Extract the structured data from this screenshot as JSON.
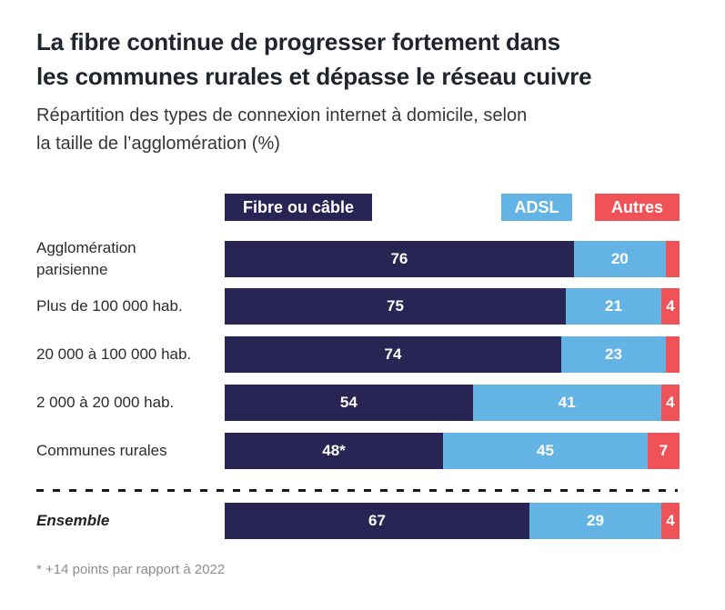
{
  "header": {
    "title_line1": "La fibre continue de progresser fortement dans",
    "title_line2": "les communes rurales et dépasse le réseau cuivre",
    "subtitle_line1": "Répartition des types de connexion internet à domicile, selon",
    "subtitle_line2": "la taille de l’agglomération (%)"
  },
  "legend": [
    {
      "label": "Fibre ou câble",
      "color": "#282453"
    },
    {
      "label": "ADSL",
      "color": "#63b4e4"
    },
    {
      "label": "Autres",
      "color": "#ef5257"
    }
  ],
  "chart_data": {
    "type": "bar",
    "orientation": "horizontal",
    "stacked": true,
    "unit": "%",
    "xlim": [
      0,
      100
    ],
    "grid": false,
    "legend_position": "top",
    "categories": [
      "Agglomération parisienne",
      "Plus de 100 000 hab.",
      "20 000 à 100 000 hab.",
      "2 000 à 20 000 hab.",
      "Communes rurales",
      "Ensemble"
    ],
    "category_display": [
      "Agglomération\nparisienne",
      "Plus de 100 000 hab.",
      "20 000 à 100 000 hab.",
      "2 000 à 20 000 hab.",
      "Communes rurales",
      "Ensemble"
    ],
    "series": [
      {
        "name": "Fibre ou câble",
        "color": "#282453",
        "values": [
          76,
          75,
          74,
          54,
          48,
          67
        ]
      },
      {
        "name": "ADSL",
        "color": "#63b4e4",
        "values": [
          20,
          21,
          23,
          41,
          45,
          29
        ]
      },
      {
        "name": "Autres",
        "color": "#ef5257",
        "values": [
          3,
          4,
          3,
          4,
          7,
          4
        ]
      }
    ],
    "value_labels": [
      [
        "76",
        "20",
        ""
      ],
      [
        "75",
        "21",
        "4"
      ],
      [
        "74",
        "23",
        ""
      ],
      [
        "54",
        "41",
        "4"
      ],
      [
        "48*",
        "45",
        "7"
      ],
      [
        "67",
        "29",
        "4"
      ]
    ],
    "separator_after_index": 4
  },
  "footnote": "* +14 points par rapport à 2022"
}
